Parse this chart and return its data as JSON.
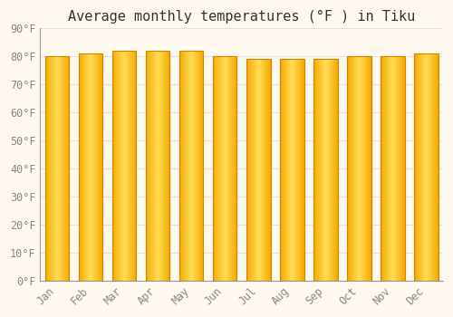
{
  "title": "Average monthly temperatures (°F ) in Tiku",
  "months": [
    "Jan",
    "Feb",
    "Mar",
    "Apr",
    "May",
    "Jun",
    "Jul",
    "Aug",
    "Sep",
    "Oct",
    "Nov",
    "Dec"
  ],
  "values": [
    80,
    81,
    82,
    82,
    82,
    80,
    79,
    79,
    79,
    80,
    80,
    81
  ],
  "ylim": [
    0,
    90
  ],
  "yticks": [
    0,
    10,
    20,
    30,
    40,
    50,
    60,
    70,
    80,
    90
  ],
  "ytick_labels": [
    "0°F",
    "10°F",
    "20°F",
    "30°F",
    "40°F",
    "50°F",
    "60°F",
    "70°F",
    "80°F",
    "90°F"
  ],
  "bar_color_center": "#FFDD55",
  "bar_color_edge": "#F5A800",
  "bar_border_color": "#CC8800",
  "background_color": "#FFF8EE",
  "grid_color": "#E0E0E8",
  "title_fontsize": 11,
  "tick_fontsize": 8.5,
  "bar_width": 0.72
}
